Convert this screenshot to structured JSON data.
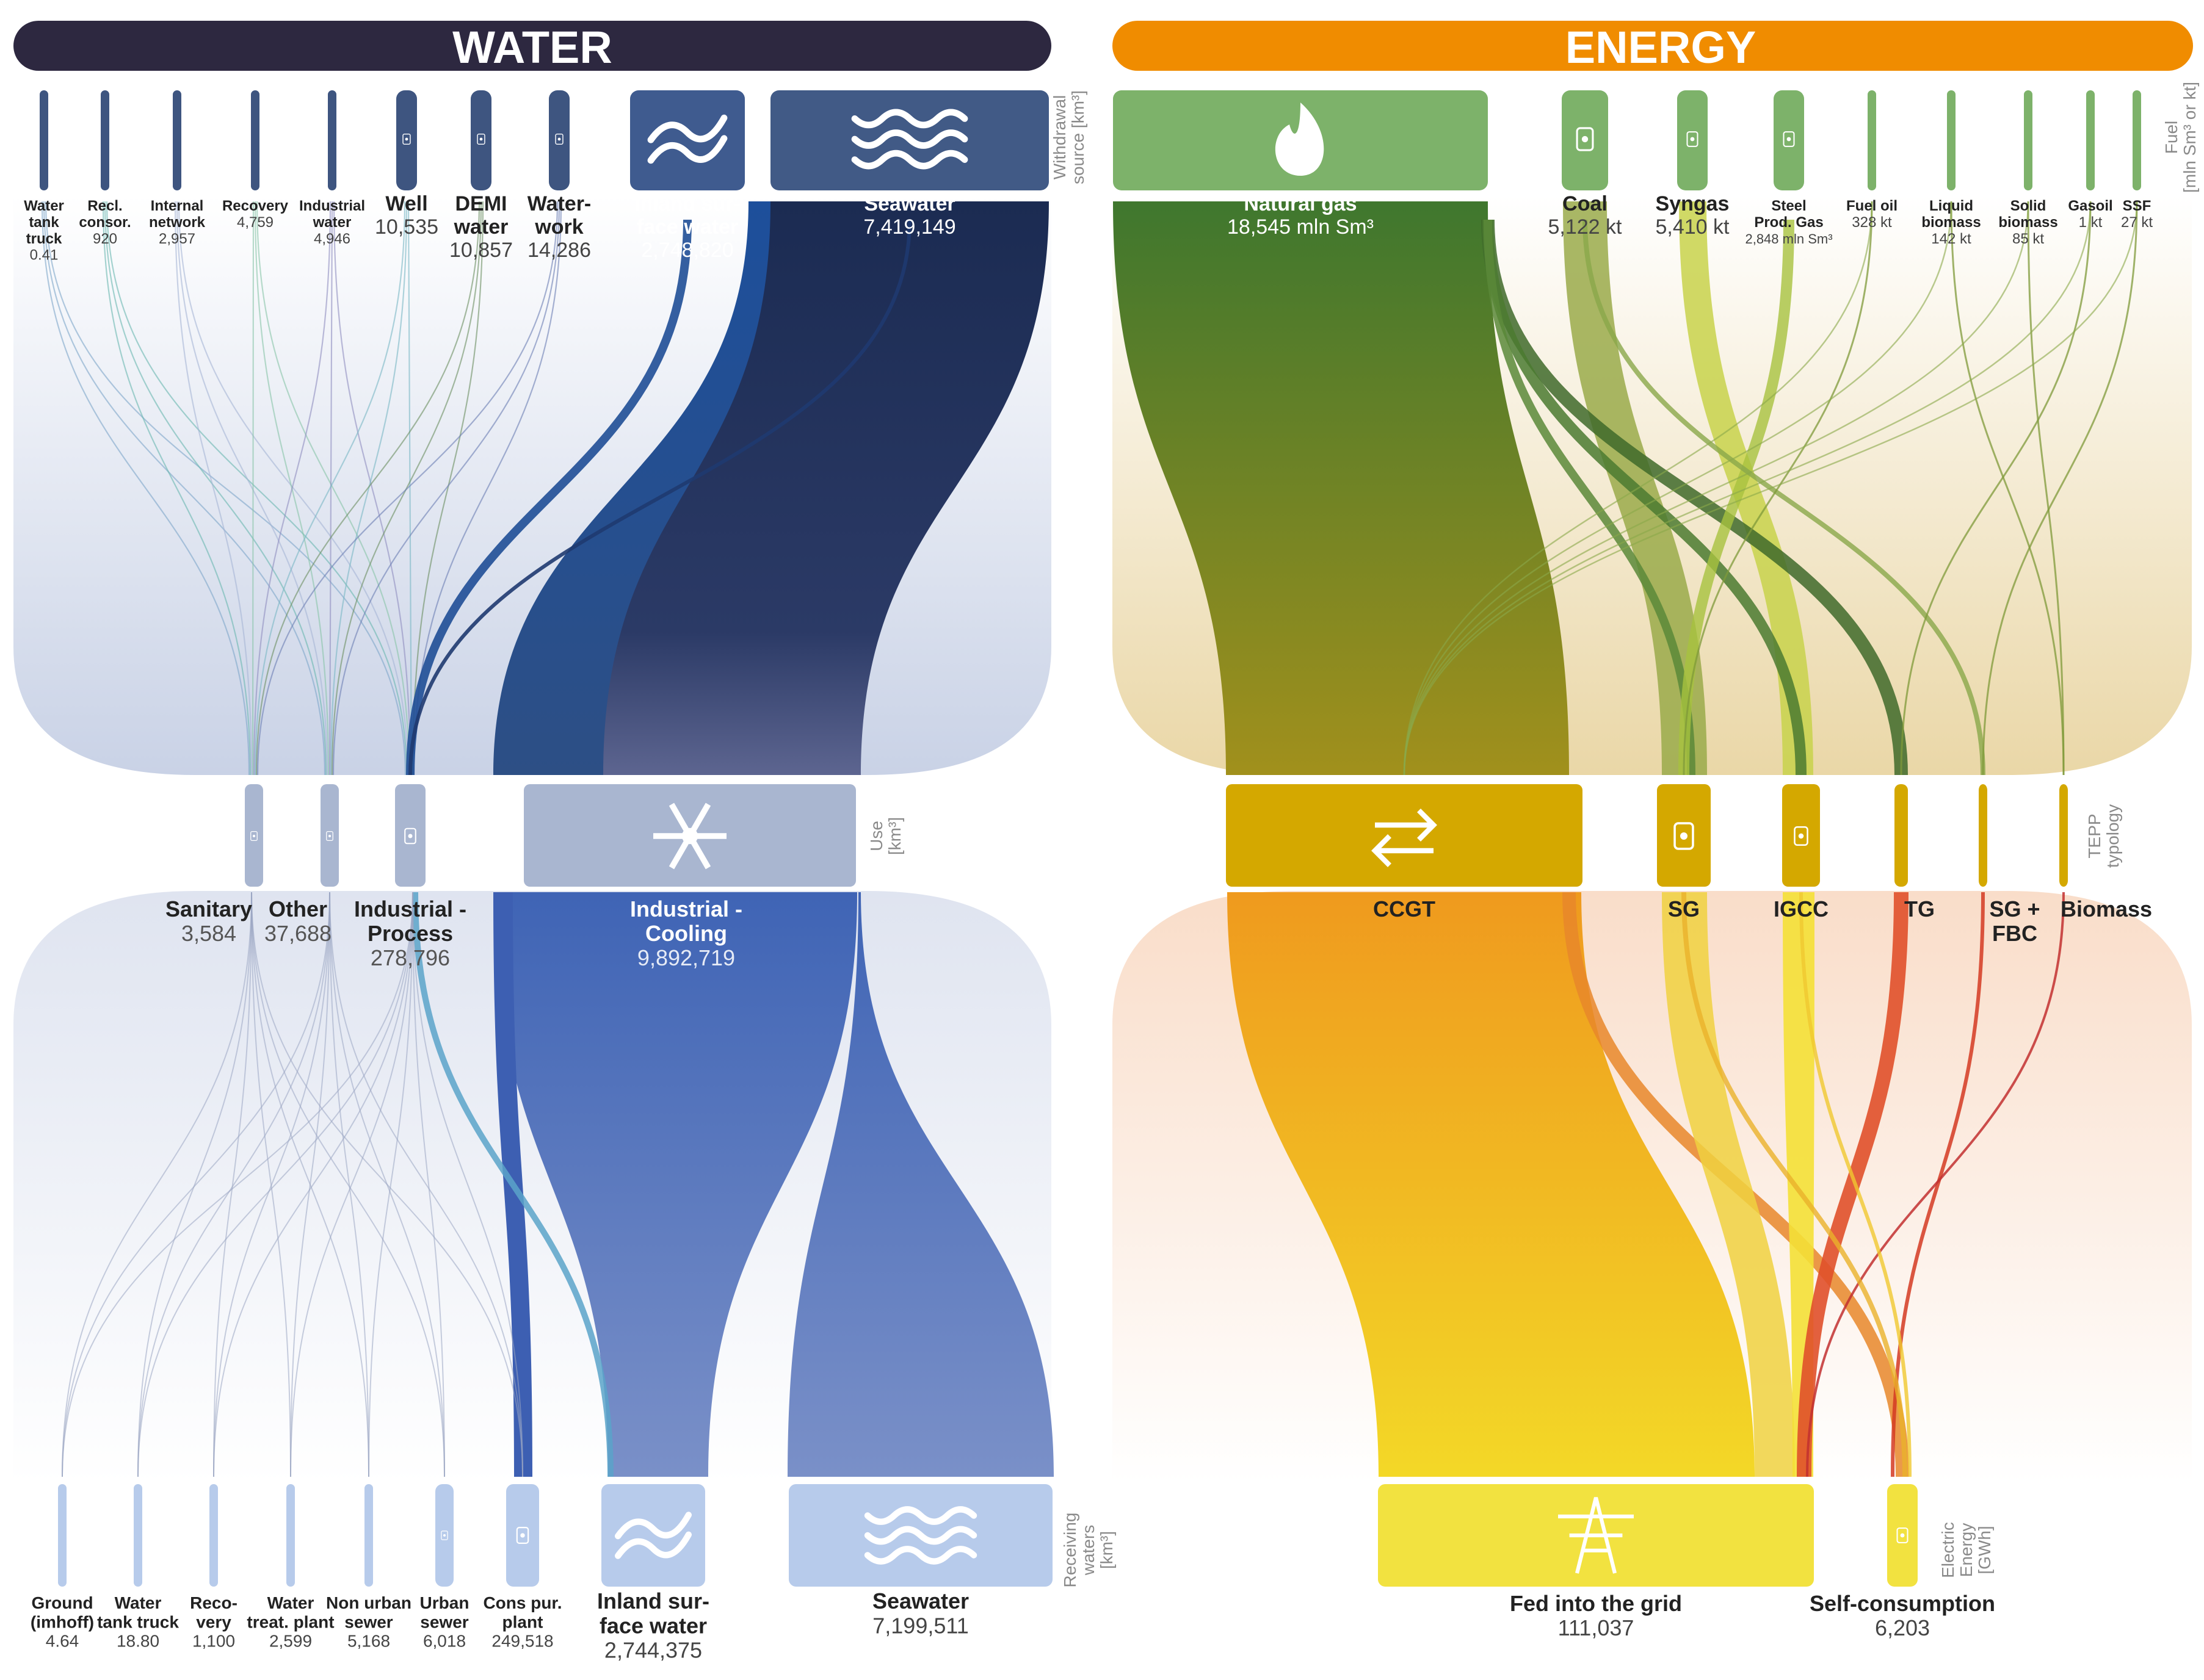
{
  "colors": {
    "water_header": "#2d2840",
    "energy_header": "#f08c00",
    "water_source_dark": "#3e5580",
    "water_use": "#a9b6d0",
    "water_receiving": "#b7cbeb",
    "energy_fuel": "#7db26a",
    "energy_tepp": "#d4a800",
    "energy_out": "#f2e240"
  },
  "water": {
    "title": "WATER",
    "side_withdrawal": [
      "Withdrawal",
      "source [km³]"
    ],
    "side_use": [
      "Use",
      "[km³]"
    ],
    "side_receiving": [
      "Receiving",
      "waters",
      "[km³]"
    ],
    "sources": [
      {
        "lines": [
          "Water",
          "tank",
          "truck"
        ],
        "value": "0.41",
        "icon": "none"
      },
      {
        "lines": [
          "Recl.",
          "consor."
        ],
        "value": "920",
        "icon": "none"
      },
      {
        "lines": [
          "Internal",
          "network"
        ],
        "value": "2,957",
        "icon": "none"
      },
      {
        "lines": [
          "Recovery"
        ],
        "value": "4,759",
        "icon": "none"
      },
      {
        "lines": [
          "Industrial",
          "water"
        ],
        "value": "4,946",
        "icon": "none"
      },
      {
        "lines": [
          "Well"
        ],
        "value": "10,535",
        "icon": "well-icon"
      },
      {
        "lines": [
          "DEMI",
          "water"
        ],
        "value": "10,857",
        "icon": "bottle-icon"
      },
      {
        "lines": [
          "Water-",
          "work"
        ],
        "value": "14,286",
        "icon": "waterworks-icon"
      },
      {
        "lines": [
          "Inland sur-",
          "face water"
        ],
        "value": "2,748,820",
        "icon": "wave-icon"
      },
      {
        "lines": [
          "Seawater"
        ],
        "value": "7,419,149",
        "icon": "sea-icon"
      }
    ],
    "uses": [
      {
        "lines": [
          "Sanitary"
        ],
        "value": "3,584",
        "icon": "tap-icon"
      },
      {
        "lines": [
          "Other"
        ],
        "value": "37,688",
        "icon": "extinguisher-icon"
      },
      {
        "lines": [
          "Industrial -",
          "Process"
        ],
        "value": "278,796",
        "icon": "pipe-icon"
      },
      {
        "lines": [
          "Industrial -",
          "Cooling"
        ],
        "value": "9,892,719",
        "icon": "snowflake-icon"
      }
    ],
    "receiving": [
      {
        "lines": [
          "Ground",
          "(imhoff)"
        ],
        "value": "4.64",
        "icon": "none"
      },
      {
        "lines": [
          "Water",
          "tank truck"
        ],
        "value": "18.80",
        "icon": "none"
      },
      {
        "lines": [
          "Reco-",
          "very"
        ],
        "value": "1,100",
        "icon": "none"
      },
      {
        "lines": [
          "Water",
          "treat. plant"
        ],
        "value": "2,599",
        "icon": "none"
      },
      {
        "lines": [
          "Non urban",
          "sewer"
        ],
        "value": "5,168",
        "icon": "none"
      },
      {
        "lines": [
          "Urban",
          "sewer"
        ],
        "value": "6,018",
        "icon": "sewer-icon"
      },
      {
        "lines": [
          "Cons pur.",
          "plant"
        ],
        "value": "249,518",
        "icon": "plant-icon"
      },
      {
        "lines": [
          "Inland sur-",
          "face water"
        ],
        "value": "2,744,375",
        "icon": "wave-icon"
      },
      {
        "lines": [
          "Seawater"
        ],
        "value": "7,199,511",
        "icon": "sea-icon"
      }
    ]
  },
  "energy": {
    "title": "ENERGY",
    "side_fuel": [
      "Fuel",
      "[mln Sm³ or kt]"
    ],
    "side_tepp": [
      "TEPP",
      "typology"
    ],
    "side_out": [
      "Electric",
      "Energy",
      "[GWh]"
    ],
    "fuels": [
      {
        "lines": [
          "Natural gas"
        ],
        "value": "18,545 mln Sm³",
        "icon": "flame-icon"
      },
      {
        "lines": [
          "Coal"
        ],
        "value": "5,122 kt",
        "icon": "coal-icon"
      },
      {
        "lines": [
          "Syngas"
        ],
        "value": "5,410 kt",
        "icon": "valve-icon"
      },
      {
        "lines": [
          "Steel",
          "Prod. Gas"
        ],
        "value": "2,848 mln Sm³",
        "icon": "steel-icon"
      },
      {
        "lines": [
          "Fuel oil"
        ],
        "value": "328 kt",
        "icon": "none"
      },
      {
        "lines": [
          "Liquid",
          "biomass"
        ],
        "value": "142 kt",
        "icon": "none"
      },
      {
        "lines": [
          "Solid",
          "biomass"
        ],
        "value": "85 kt",
        "icon": "none"
      },
      {
        "lines": [
          "Gasoil"
        ],
        "value": "1 kt",
        "icon": "none"
      },
      {
        "lines": [
          "SSF"
        ],
        "value": "27 kt",
        "icon": "none"
      }
    ],
    "tepp": [
      {
        "lines": [
          "CCGT"
        ],
        "icon": "cycle-icon"
      },
      {
        "lines": [
          "SG"
        ],
        "icon": "factory-icon"
      },
      {
        "lines": [
          "IGCC"
        ],
        "icon": "fan-icon"
      },
      {
        "lines": [
          "TG"
        ],
        "icon": "none"
      },
      {
        "lines": [
          "SG +",
          "FBC"
        ],
        "icon": "none"
      },
      {
        "lines": [
          "Biomass"
        ],
        "icon": "none"
      }
    ],
    "outputs": [
      {
        "lines": [
          "Fed into the grid"
        ],
        "value": "111,037",
        "icon": "pylon-icon"
      },
      {
        "lines": [
          "Self-consumption"
        ],
        "value": "6,203",
        "icon": "plug-icon"
      }
    ]
  }
}
